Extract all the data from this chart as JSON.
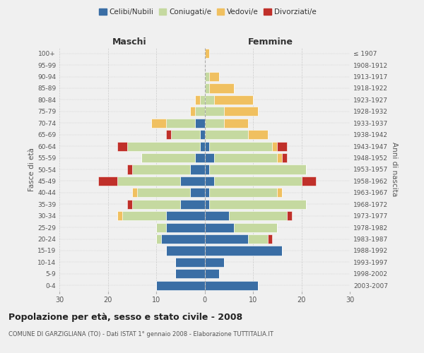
{
  "age_groups": [
    "0-4",
    "5-9",
    "10-14",
    "15-19",
    "20-24",
    "25-29",
    "30-34",
    "35-39",
    "40-44",
    "45-49",
    "50-54",
    "55-59",
    "60-64",
    "65-69",
    "70-74",
    "75-79",
    "80-84",
    "85-89",
    "90-94",
    "95-99",
    "100+"
  ],
  "birth_years": [
    "2003-2007",
    "1998-2002",
    "1993-1997",
    "1988-1992",
    "1983-1987",
    "1978-1982",
    "1973-1977",
    "1968-1972",
    "1963-1967",
    "1958-1962",
    "1953-1957",
    "1948-1952",
    "1943-1947",
    "1938-1942",
    "1933-1937",
    "1928-1932",
    "1923-1927",
    "1918-1922",
    "1913-1917",
    "1908-1912",
    "≤ 1907"
  ],
  "male": {
    "celibi": [
      10,
      6,
      6,
      8,
      9,
      8,
      8,
      5,
      3,
      5,
      3,
      2,
      1,
      1,
      2,
      0,
      0,
      0,
      0,
      0,
      0
    ],
    "coniugati": [
      0,
      0,
      0,
      0,
      1,
      2,
      9,
      10,
      11,
      13,
      12,
      11,
      15,
      6,
      6,
      2,
      1,
      0,
      0,
      0,
      0
    ],
    "vedovi": [
      0,
      0,
      0,
      0,
      0,
      0,
      1,
      0,
      1,
      0,
      0,
      0,
      0,
      0,
      3,
      1,
      1,
      0,
      0,
      0,
      0
    ],
    "divorziati": [
      0,
      0,
      0,
      0,
      0,
      0,
      0,
      1,
      0,
      4,
      1,
      0,
      2,
      1,
      0,
      0,
      0,
      0,
      0,
      0,
      0
    ]
  },
  "female": {
    "nubili": [
      11,
      3,
      4,
      16,
      9,
      6,
      5,
      1,
      1,
      2,
      1,
      2,
      1,
      0,
      0,
      0,
      0,
      0,
      0,
      0,
      0
    ],
    "coniugate": [
      0,
      0,
      0,
      0,
      4,
      9,
      12,
      20,
      14,
      18,
      20,
      13,
      13,
      9,
      4,
      4,
      2,
      1,
      1,
      0,
      0
    ],
    "vedove": [
      0,
      0,
      0,
      0,
      0,
      0,
      0,
      0,
      1,
      0,
      0,
      1,
      1,
      4,
      5,
      7,
      8,
      5,
      2,
      0,
      1
    ],
    "divorziate": [
      0,
      0,
      0,
      0,
      1,
      0,
      1,
      0,
      0,
      3,
      0,
      1,
      2,
      0,
      0,
      0,
      0,
      0,
      0,
      0,
      0
    ]
  },
  "colors": {
    "celibi_nubili": "#3a6ea5",
    "coniugati": "#c5d9a0",
    "vedovi": "#f0c060",
    "divorziati": "#c0302a"
  },
  "xlim": 30,
  "title": "Popolazione per età, sesso e stato civile - 2008",
  "subtitle": "COMUNE DI GARZIGLIANA (TO) - Dati ISTAT 1° gennaio 2008 - Elaborazione TUTTITALIA.IT",
  "ylabel_left": "Fasce di età",
  "ylabel_right": "Anni di nascita",
  "xlabel_left": "Maschi",
  "xlabel_right": "Femmine",
  "bg_color": "#f0f0f0",
  "grid_color": "#cccccc"
}
